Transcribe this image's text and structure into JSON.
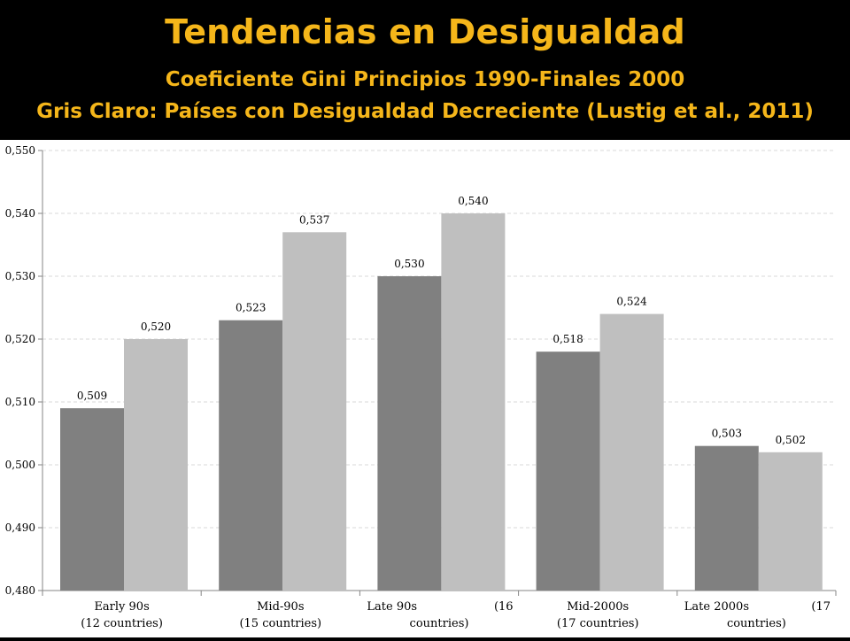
{
  "header": {
    "title": "Tendencias en Desigualdad",
    "subtitle": "Coeficiente Gini Principios 1990-Finales 2000",
    "subtitle2": "Gris Claro: Países con Desigualdad Decreciente (Lustig et al., 2011)"
  },
  "colors": {
    "title": "#F5B61A",
    "dark_series": "#808080",
    "light_series": "#BFBFBF",
    "background_header": "#000000"
  },
  "chart_data": {
    "type": "bar",
    "title": "",
    "xlabel": "",
    "ylabel": "",
    "ylim": [
      0.48,
      0.55
    ],
    "y_ticks": [
      "0,480",
      "0,490",
      "0,500",
      "0,510",
      "0,520",
      "0,530",
      "0,540",
      "0,550"
    ],
    "grid": true,
    "legend": "none",
    "category_labels": [
      [
        "Early 90s",
        "(12 countries)"
      ],
      [
        "Mid-90s",
        "(15 countries)"
      ],
      [
        "Late 90s",
        "(16",
        "countries)"
      ],
      [
        "Mid-2000s",
        "(17 countries)"
      ],
      [
        "Late 2000s",
        "(17",
        "countries)"
      ]
    ],
    "series": [
      {
        "color": "#808080",
        "values": [
          0.509,
          0.523,
          0.53,
          0.518,
          0.503
        ],
        "labels": [
          "0,509",
          "0,523",
          "0,530",
          "0,518",
          "0,503"
        ]
      },
      {
        "color": "#BFBFBF",
        "values": [
          0.52,
          0.537,
          0.54,
          0.524,
          0.502
        ],
        "labels": [
          "0,520",
          "0,537",
          "0,540",
          "0,524",
          "0,502"
        ]
      }
    ]
  }
}
